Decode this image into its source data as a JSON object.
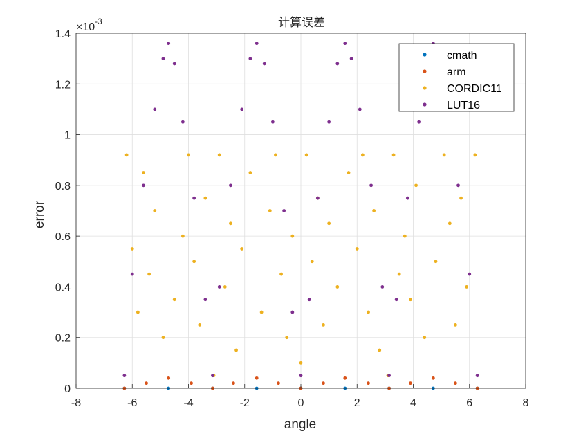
{
  "chart_data": {
    "type": "scatter",
    "title": "计算误差",
    "xlabel": "angle",
    "ylabel": "error",
    "xlim": [
      -8,
      8
    ],
    "ylim": [
      0,
      1.4
    ],
    "y_exponent_label": "×10",
    "y_exponent_power": "-3",
    "grid": true,
    "legend_placement": "top-right",
    "x_ticks": [
      "-8",
      "-6",
      "-4",
      "-2",
      "0",
      "2",
      "4",
      "6",
      "8"
    ],
    "y_ticks": [
      "0",
      "0.2",
      "0.4",
      "0.6",
      "0.8",
      "1",
      "1.2",
      "1.4"
    ],
    "series": [
      {
        "name": "cmath",
        "color": "#0072BD",
        "x": [
          -6.28,
          -4.71,
          -3.14,
          -1.57,
          0,
          1.57,
          3.14,
          4.71,
          6.28
        ],
        "y": [
          0,
          0,
          0,
          0,
          0,
          0,
          0,
          0,
          0
        ]
      },
      {
        "name": "arm",
        "color": "#D95319",
        "x": [
          -6.28,
          -5.5,
          -4.71,
          -3.9,
          -3.14,
          -2.4,
          -1.57,
          -0.8,
          0,
          0.8,
          1.57,
          2.4,
          3.14,
          3.9,
          4.71,
          5.5,
          6.28
        ],
        "y": [
          0.0,
          0.02,
          0.04,
          0.02,
          0.0,
          0.02,
          0.04,
          0.02,
          0.0,
          0.02,
          0.04,
          0.02,
          0.0,
          0.02,
          0.04,
          0.02,
          0.0
        ]
      },
      {
        "name": "CORDIC11",
        "color": "#EDB120",
        "x": [
          -6.2,
          -6.0,
          -5.8,
          -5.6,
          -5.4,
          -5.2,
          -4.9,
          -4.5,
          -4.2,
          -4.0,
          -3.8,
          -3.6,
          -3.4,
          -3.1,
          -2.9,
          -2.7,
          -2.5,
          -2.3,
          -2.1,
          -1.8,
          -1.4,
          -1.1,
          -0.9,
          -0.7,
          -0.5,
          -0.3,
          0.0,
          0.2,
          0.4,
          0.6,
          0.8,
          1.0,
          1.3,
          1.7,
          2.0,
          2.2,
          2.4,
          2.6,
          2.8,
          3.1,
          3.3,
          3.5,
          3.7,
          3.9,
          4.1,
          4.4,
          4.8,
          5.1,
          5.3,
          5.5,
          5.7,
          5.9,
          6.2
        ],
        "y": [
          0.92,
          0.55,
          0.3,
          0.85,
          0.45,
          0.7,
          0.2,
          0.35,
          0.6,
          0.92,
          0.5,
          0.25,
          0.75,
          0.05,
          0.92,
          0.4,
          0.65,
          0.15,
          0.55,
          0.85,
          0.3,
          0.7,
          0.92,
          0.45,
          0.2,
          0.6,
          0.1,
          0.92,
          0.5,
          0.75,
          0.25,
          0.65,
          0.4,
          0.85,
          0.55,
          0.92,
          0.3,
          0.7,
          0.15,
          0.05,
          0.92,
          0.45,
          0.6,
          0.35,
          0.8,
          0.2,
          0.5,
          0.92,
          0.65,
          0.25,
          0.75,
          0.4,
          0.92
        ]
      },
      {
        "name": "LUT16",
        "color": "#7E2F8E",
        "x": [
          -6.28,
          -6.0,
          -5.6,
          -5.2,
          -4.9,
          -4.71,
          -4.5,
          -4.2,
          -3.8,
          -3.4,
          -3.14,
          -2.9,
          -2.5,
          -2.1,
          -1.8,
          -1.57,
          -1.3,
          -1.0,
          -0.6,
          -0.3,
          0.0,
          0.3,
          0.6,
          1.0,
          1.3,
          1.57,
          1.8,
          2.1,
          2.5,
          2.9,
          3.14,
          3.4,
          3.8,
          4.2,
          4.5,
          4.71,
          4.9,
          5.2,
          5.6,
          6.0,
          6.28
        ],
        "y": [
          0.05,
          0.45,
          0.8,
          1.1,
          1.3,
          1.36,
          1.28,
          1.05,
          0.75,
          0.35,
          0.05,
          0.4,
          0.8,
          1.1,
          1.3,
          1.36,
          1.28,
          1.05,
          0.7,
          0.3,
          0.05,
          0.35,
          0.75,
          1.05,
          1.28,
          1.36,
          1.3,
          1.1,
          0.8,
          0.4,
          0.05,
          0.35,
          0.75,
          1.05,
          1.28,
          1.36,
          1.3,
          1.1,
          0.8,
          0.45,
          0.05
        ]
      }
    ]
  }
}
